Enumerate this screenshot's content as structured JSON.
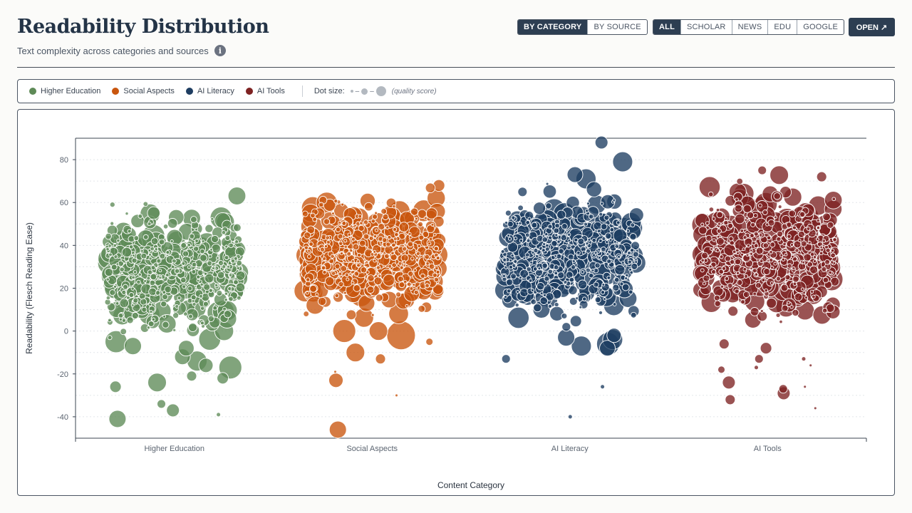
{
  "header": {
    "title": "Readability Distribution",
    "subtitle": "Text complexity across categories and sources",
    "info_icon": "i"
  },
  "view_toggle": {
    "options": [
      {
        "label": "BY CATEGORY",
        "active": true
      },
      {
        "label": "BY SOURCE",
        "active": false
      }
    ]
  },
  "source_filter": {
    "options": [
      {
        "label": "ALL",
        "active": true
      },
      {
        "label": "SCHOLAR",
        "active": false
      },
      {
        "label": "NEWS",
        "active": false
      },
      {
        "label": "EDU",
        "active": false
      },
      {
        "label": "GOOGLE",
        "active": false
      }
    ]
  },
  "open_button": {
    "label": "OPEN ↗"
  },
  "legend": {
    "items": [
      {
        "label": "Higher Education",
        "color": "#5e8a57"
      },
      {
        "label": "Social Aspects",
        "color": "#c9560e"
      },
      {
        "label": "AI Literacy",
        "color": "#1e3d61"
      },
      {
        "label": "AI Tools",
        "color": "#7e2222"
      }
    ],
    "size_label": "Dot size:",
    "size_note": "(quality score)"
  },
  "chart_data": {
    "type": "scatter",
    "subtype": "jittered bubble strip plot",
    "xlabel": "Content Category",
    "ylabel": "Readability (Flesch Reading Ease)",
    "ylim": [
      -50,
      90
    ],
    "yticks": [
      -40,
      -20,
      0,
      20,
      40,
      60,
      80
    ],
    "grid": "horizontal dotted",
    "categories": [
      "Higher Education",
      "Social Aspects",
      "AI Literacy",
      "AI Tools"
    ],
    "series": [
      {
        "name": "Higher Education",
        "color": "#5e8a57",
        "core_range": [
          -10,
          64
        ],
        "points_per_category": 520,
        "outliers": [
          {
            "y": -41,
            "size": 12
          },
          {
            "y": -37,
            "size": 9
          },
          {
            "y": -34,
            "size": 6
          },
          {
            "y": -39,
            "size": 3
          },
          {
            "y": -26,
            "size": 8
          },
          {
            "y": -24,
            "size": 13
          },
          {
            "y": -22,
            "size": 8
          },
          {
            "y": -21,
            "size": 7
          },
          {
            "y": -17,
            "size": 16
          },
          {
            "y": -16,
            "size": 10
          },
          {
            "y": -14,
            "size": 14
          },
          {
            "y": -12,
            "size": 11
          },
          {
            "y": -8,
            "size": 11
          },
          {
            "y": -7,
            "size": 12
          }
        ]
      },
      {
        "name": "Social Aspects",
        "color": "#c9560e",
        "core_range": [
          2,
          70
        ],
        "points_per_category": 520,
        "outliers": [
          {
            "y": -46,
            "size": 12
          },
          {
            "y": -30,
            "size": 2
          },
          {
            "y": -23,
            "size": 10
          },
          {
            "y": -19,
            "size": 2
          },
          {
            "y": -13,
            "size": 7
          },
          {
            "y": -10,
            "size": 13
          },
          {
            "y": -5,
            "size": 5
          },
          {
            "y": -2,
            "size": 20
          },
          {
            "y": 0,
            "size": 16
          },
          {
            "y": 0,
            "size": 13
          }
        ]
      },
      {
        "name": "AI Literacy",
        "color": "#1e3d61",
        "core_range": [
          -2,
          72
        ],
        "points_per_category": 520,
        "outliers": [
          {
            "y": 88,
            "size": 9
          },
          {
            "y": 79,
            "size": 14
          },
          {
            "y": 71,
            "size": 14
          },
          {
            "y": 73,
            "size": 11
          },
          {
            "y": -40,
            "size": 3
          },
          {
            "y": -26,
            "size": 3
          },
          {
            "y": -13,
            "size": 6
          },
          {
            "y": -8,
            "size": 11
          },
          {
            "y": -7,
            "size": 14
          },
          {
            "y": -6,
            "size": 16
          },
          {
            "y": -4,
            "size": 14
          },
          {
            "y": -3,
            "size": 12
          },
          {
            "y": -2,
            "size": 10
          }
        ]
      },
      {
        "name": "AI Tools",
        "color": "#7e2222",
        "core_range": [
          -2,
          76
        ],
        "points_per_category": 520,
        "outliers": [
          {
            "y": -36,
            "size": 2
          },
          {
            "y": -32,
            "size": 7
          },
          {
            "y": -29,
            "size": 9
          },
          {
            "y": -26,
            "size": 2
          },
          {
            "y": -27,
            "size": 6
          },
          {
            "y": -24,
            "size": 9
          },
          {
            "y": -18,
            "size": 5
          },
          {
            "y": -17,
            "size": 3
          },
          {
            "y": -16,
            "size": 2
          },
          {
            "y": -13,
            "size": 3
          },
          {
            "y": -13,
            "size": 6
          },
          {
            "y": -8,
            "size": 8
          },
          {
            "y": -6,
            "size": 7
          },
          {
            "y": 75,
            "size": 6
          },
          {
            "y": 72,
            "size": 7
          }
        ]
      }
    ]
  }
}
